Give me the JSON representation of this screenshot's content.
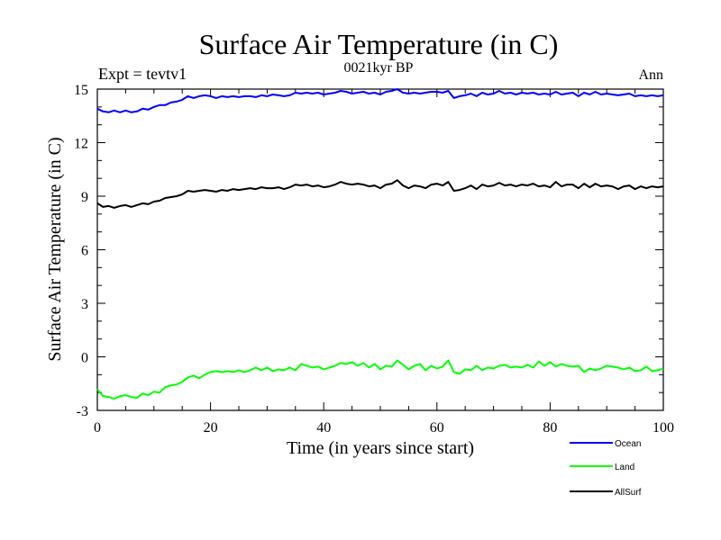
{
  "chart_data": {
    "type": "line",
    "title": "Surface Air Temperature (in C)",
    "subtitle": "0021kyr BP",
    "left_label": "Expt = tevtv1",
    "right_label": "Ann",
    "xlabel": "Time (in years since start)",
    "ylabel": "Surface Air Temperature (in C)",
    "xlim": [
      0,
      100
    ],
    "ylim": [
      -3,
      15
    ],
    "xticks": [
      0,
      20,
      40,
      60,
      80,
      100
    ],
    "yticks": [
      -3,
      0,
      3,
      6,
      9,
      12,
      15
    ],
    "xtick_labels": [
      "0",
      "20",
      "40",
      "60",
      "80",
      "100"
    ],
    "ytick_labels": [
      "-3",
      "0",
      "3",
      "6",
      "9",
      "12",
      "15"
    ],
    "legend_position": "bottom-right",
    "x": [
      0,
      1,
      2,
      3,
      4,
      5,
      6,
      7,
      8,
      9,
      10,
      11,
      12,
      13,
      14,
      15,
      16,
      17,
      18,
      19,
      20,
      21,
      22,
      23,
      24,
      25,
      26,
      27,
      28,
      29,
      30,
      31,
      32,
      33,
      34,
      35,
      36,
      37,
      38,
      39,
      40,
      41,
      42,
      43,
      44,
      45,
      46,
      47,
      48,
      49,
      50,
      51,
      52,
      53,
      54,
      55,
      56,
      57,
      58,
      59,
      60,
      61,
      62,
      63,
      64,
      65,
      66,
      67,
      68,
      69,
      70,
      71,
      72,
      73,
      74,
      75,
      76,
      77,
      78,
      79,
      80,
      81,
      82,
      83,
      84,
      85,
      86,
      87,
      88,
      89,
      90,
      91,
      92,
      93,
      94,
      95,
      96,
      97,
      98,
      99,
      100
    ],
    "series": [
      {
        "name": "Ocean",
        "color": "#0000ff",
        "values": [
          13.9,
          13.75,
          13.7,
          13.8,
          13.7,
          13.8,
          13.7,
          13.75,
          13.9,
          13.85,
          14.0,
          14.1,
          14.1,
          14.25,
          14.3,
          14.4,
          14.6,
          14.5,
          14.6,
          14.65,
          14.6,
          14.5,
          14.6,
          14.55,
          14.6,
          14.55,
          14.6,
          14.6,
          14.55,
          14.65,
          14.6,
          14.7,
          14.65,
          14.6,
          14.65,
          14.8,
          14.75,
          14.8,
          14.75,
          14.8,
          14.7,
          14.75,
          14.8,
          14.9,
          14.85,
          14.75,
          14.8,
          14.85,
          14.75,
          14.8,
          14.7,
          14.85,
          14.9,
          15.0,
          14.8,
          14.75,
          14.8,
          14.75,
          14.8,
          14.85,
          14.85,
          14.8,
          14.9,
          14.5,
          14.6,
          14.65,
          14.75,
          14.6,
          14.8,
          14.7,
          14.75,
          14.9,
          14.75,
          14.8,
          14.7,
          14.8,
          14.75,
          14.8,
          14.7,
          14.75,
          14.7,
          14.85,
          14.7,
          14.75,
          14.8,
          14.6,
          14.8,
          14.7,
          14.85,
          14.7,
          14.75,
          14.7,
          14.65,
          14.7,
          14.75,
          14.6,
          14.65,
          14.6,
          14.65,
          14.6,
          14.65
        ]
      },
      {
        "name": "Land",
        "color": "#00ff00",
        "values": [
          -1.8,
          -2.2,
          -2.25,
          -2.35,
          -2.2,
          -2.15,
          -2.25,
          -2.3,
          -2.05,
          -2.15,
          -1.95,
          -2.0,
          -1.7,
          -1.6,
          -1.55,
          -1.4,
          -1.15,
          -1.05,
          -1.2,
          -1.0,
          -0.85,
          -0.8,
          -0.85,
          -0.8,
          -0.85,
          -0.75,
          -0.85,
          -0.75,
          -0.6,
          -0.75,
          -0.6,
          -0.8,
          -0.7,
          -0.75,
          -0.6,
          -0.75,
          -0.4,
          -0.5,
          -0.6,
          -0.55,
          -0.7,
          -0.6,
          -0.5,
          -0.35,
          -0.4,
          -0.3,
          -0.5,
          -0.35,
          -0.6,
          -0.4,
          -0.7,
          -0.5,
          -0.55,
          -0.2,
          -0.45,
          -0.7,
          -0.5,
          -0.4,
          -0.75,
          -0.5,
          -0.65,
          -0.55,
          -0.2,
          -0.85,
          -0.95,
          -0.7,
          -0.75,
          -0.5,
          -0.75,
          -0.6,
          -0.65,
          -0.5,
          -0.45,
          -0.6,
          -0.55,
          -0.6,
          -0.45,
          -0.6,
          -0.25,
          -0.5,
          -0.3,
          -0.55,
          -0.4,
          -0.5,
          -0.55,
          -0.5,
          -0.85,
          -0.65,
          -0.75,
          -0.65,
          -0.5,
          -0.55,
          -0.6,
          -0.7,
          -0.6,
          -0.8,
          -0.75,
          -0.55,
          -0.8,
          -0.75,
          -0.65
        ]
      },
      {
        "name": "AllSurf",
        "color": "#000000",
        "values": [
          8.6,
          8.4,
          8.45,
          8.35,
          8.45,
          8.5,
          8.4,
          8.5,
          8.6,
          8.55,
          8.7,
          8.75,
          8.9,
          8.95,
          9.0,
          9.1,
          9.3,
          9.25,
          9.3,
          9.35,
          9.3,
          9.25,
          9.35,
          9.3,
          9.4,
          9.35,
          9.4,
          9.45,
          9.4,
          9.5,
          9.45,
          9.45,
          9.5,
          9.4,
          9.5,
          9.65,
          9.6,
          9.65,
          9.55,
          9.6,
          9.5,
          9.55,
          9.65,
          9.8,
          9.7,
          9.65,
          9.7,
          9.65,
          9.55,
          9.6,
          9.45,
          9.65,
          9.7,
          9.9,
          9.6,
          9.45,
          9.6,
          9.55,
          9.45,
          9.65,
          9.7,
          9.6,
          9.8,
          9.3,
          9.35,
          9.45,
          9.6,
          9.4,
          9.65,
          9.55,
          9.6,
          9.75,
          9.6,
          9.65,
          9.55,
          9.65,
          9.6,
          9.7,
          9.55,
          9.6,
          9.5,
          9.8,
          9.55,
          9.65,
          9.65,
          9.45,
          9.7,
          9.5,
          9.7,
          9.55,
          9.6,
          9.55,
          9.4,
          9.55,
          9.6,
          9.4,
          9.55,
          9.45,
          9.55,
          9.5,
          9.55
        ]
      }
    ]
  }
}
